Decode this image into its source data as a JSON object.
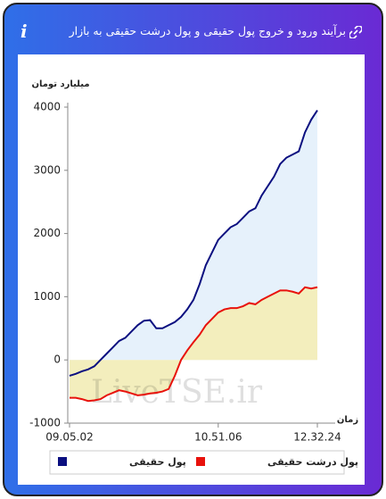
{
  "chart_data": {
    "type": "line",
    "title": "برآیند ورود و خروج پول حقیقی و پول درشت حقیقی به بازار",
    "info_icon": "i",
    "y_label": "میلیارد تومان",
    "x_label": "زمان",
    "watermark": "LiveTSE.ir",
    "categories": [
      "09.05.02",
      null,
      null,
      null,
      null,
      null,
      null,
      null,
      null,
      null,
      null,
      null,
      null,
      null,
      null,
      null,
      null,
      null,
      null,
      null,
      null,
      null,
      null,
      null,
      "10.51.06",
      null,
      null,
      null,
      null,
      null,
      null,
      null,
      null,
      null,
      null,
      null,
      null,
      null,
      null,
      null,
      "12.32.24"
    ],
    "series": [
      {
        "name": "پول حقیقی",
        "color": "#0b0f80",
        "fill": "#e6f1fb",
        "values": [
          -250,
          -220,
          -180,
          -150,
          -100,
          0,
          100,
          200,
          300,
          350,
          450,
          550,
          620,
          630,
          500,
          500,
          550,
          600,
          680,
          800,
          950,
          1200,
          1500,
          1700,
          1900,
          2000,
          2100,
          2150,
          2250,
          2350,
          2400,
          2600,
          2750,
          2900,
          3100,
          3200,
          3250,
          3300,
          3600,
          3800,
          3950
        ]
      },
      {
        "name": "پول درشت حقیقی",
        "color": "#e8120c",
        "fill": "#f3eebd",
        "values": [
          -600,
          -600,
          -620,
          -650,
          -640,
          -620,
          -560,
          -520,
          -480,
          -500,
          -530,
          -560,
          -550,
          -530,
          -520,
          -500,
          -460,
          -250,
          0,
          150,
          280,
          400,
          550,
          650,
          750,
          800,
          820,
          820,
          850,
          900,
          880,
          950,
          1000,
          1050,
          1100,
          1100,
          1080,
          1050,
          1150,
          1130,
          1150
        ]
      }
    ],
    "ylim": [
      -1000,
      4000
    ],
    "yticks": [
      -1000,
      0,
      1000,
      2000,
      3000,
      4000
    ]
  }
}
